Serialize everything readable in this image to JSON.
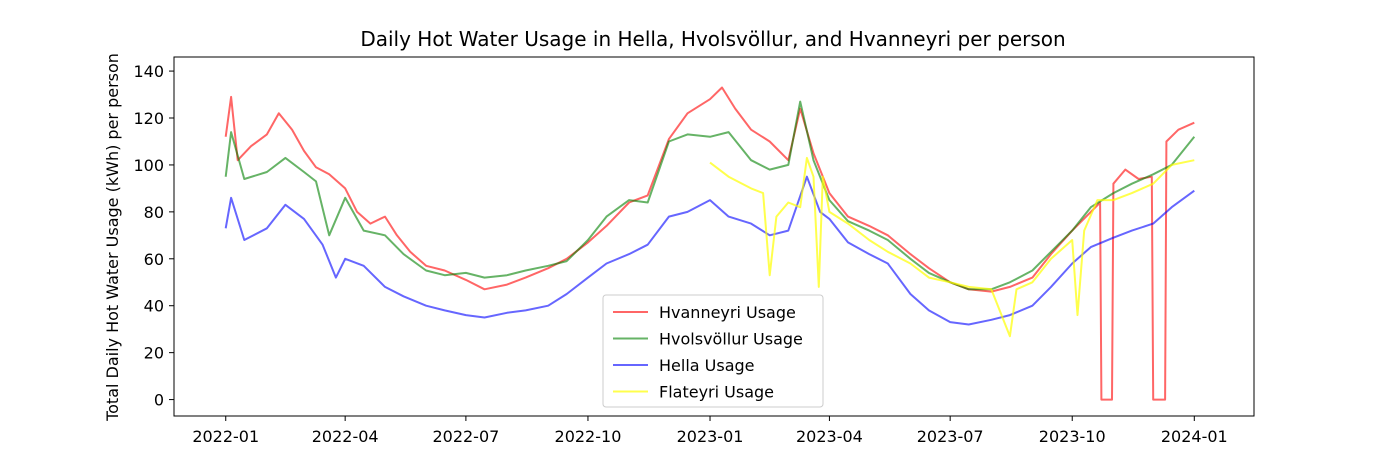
{
  "chart_data": {
    "type": "line",
    "title": "Daily Hot Water Usage in Hella, Hvolsvöllur, and Hvanneyri per person",
    "xlabel": "",
    "ylabel": "Total Daily Hot Water Usage (kWh) per person",
    "xlim": [
      "2021-11-23",
      "2024-02-15"
    ],
    "ylim": [
      -7,
      146
    ],
    "x_ticks": [
      "2022-01",
      "2022-04",
      "2022-07",
      "2022-10",
      "2023-01",
      "2023-04",
      "2023-07",
      "2023-10",
      "2024-01"
    ],
    "y_ticks": [
      0,
      20,
      40,
      60,
      80,
      100,
      120,
      140
    ],
    "grid": false,
    "legend": "lower-center",
    "series": [
      {
        "name": "Hvanneyri Usage",
        "color": "#ff0000",
        "opacity": 0.6,
        "points": [
          [
            "2022-01-01",
            112
          ],
          [
            "2022-01-05",
            129
          ],
          [
            "2022-01-10",
            102
          ],
          [
            "2022-01-20",
            108
          ],
          [
            "2022-02-01",
            113
          ],
          [
            "2022-02-10",
            122
          ],
          [
            "2022-02-20",
            115
          ],
          [
            "2022-03-01",
            106
          ],
          [
            "2022-03-10",
            99
          ],
          [
            "2022-03-20",
            96
          ],
          [
            "2022-04-01",
            90
          ],
          [
            "2022-04-10",
            80
          ],
          [
            "2022-04-20",
            75
          ],
          [
            "2022-05-01",
            78
          ],
          [
            "2022-05-10",
            70
          ],
          [
            "2022-05-20",
            63
          ],
          [
            "2022-06-01",
            57
          ],
          [
            "2022-06-15",
            55
          ],
          [
            "2022-07-01",
            51
          ],
          [
            "2022-07-15",
            47
          ],
          [
            "2022-08-01",
            49
          ],
          [
            "2022-08-15",
            52
          ],
          [
            "2022-09-01",
            56
          ],
          [
            "2022-09-15",
            60
          ],
          [
            "2022-10-01",
            67
          ],
          [
            "2022-10-15",
            74
          ],
          [
            "2022-11-01",
            84
          ],
          [
            "2022-11-15",
            87
          ],
          [
            "2022-12-01",
            111
          ],
          [
            "2022-12-15",
            122
          ],
          [
            "2023-01-01",
            128
          ],
          [
            "2023-01-10",
            133
          ],
          [
            "2023-01-20",
            124
          ],
          [
            "2023-02-01",
            115
          ],
          [
            "2023-02-15",
            110
          ],
          [
            "2023-03-01",
            102
          ],
          [
            "2023-03-10",
            124
          ],
          [
            "2023-03-20",
            105
          ],
          [
            "2023-04-01",
            88
          ],
          [
            "2023-04-15",
            78
          ],
          [
            "2023-05-01",
            74
          ],
          [
            "2023-05-15",
            70
          ],
          [
            "2023-06-01",
            62
          ],
          [
            "2023-06-15",
            56
          ],
          [
            "2023-07-01",
            50
          ],
          [
            "2023-07-15",
            47
          ],
          [
            "2023-08-01",
            46
          ],
          [
            "2023-08-15",
            48
          ],
          [
            "2023-09-01",
            52
          ],
          [
            "2023-09-15",
            62
          ],
          [
            "2023-10-01",
            72
          ],
          [
            "2023-10-15",
            80
          ],
          [
            "2023-10-22",
            84
          ],
          [
            "2023-10-23",
            0
          ],
          [
            "2023-10-31",
            0
          ],
          [
            "2023-11-01",
            92
          ],
          [
            "2023-11-10",
            98
          ],
          [
            "2023-11-20",
            94
          ],
          [
            "2023-11-30",
            95
          ],
          [
            "2023-12-01",
            0
          ],
          [
            "2023-12-10",
            0
          ],
          [
            "2023-12-11",
            110
          ],
          [
            "2023-12-20",
            115
          ],
          [
            "2024-01-01",
            118
          ]
        ]
      },
      {
        "name": "Hvolsvöllur Usage",
        "color": "#008000",
        "opacity": 0.6,
        "points": [
          [
            "2022-01-01",
            95
          ],
          [
            "2022-01-05",
            114
          ],
          [
            "2022-01-15",
            94
          ],
          [
            "2022-02-01",
            97
          ],
          [
            "2022-02-15",
            103
          ],
          [
            "2022-03-01",
            97
          ],
          [
            "2022-03-10",
            93
          ],
          [
            "2022-03-20",
            70
          ],
          [
            "2022-04-01",
            86
          ],
          [
            "2022-04-15",
            72
          ],
          [
            "2022-05-01",
            70
          ],
          [
            "2022-05-15",
            62
          ],
          [
            "2022-06-01",
            55
          ],
          [
            "2022-06-15",
            53
          ],
          [
            "2022-07-01",
            54
          ],
          [
            "2022-07-15",
            52
          ],
          [
            "2022-08-01",
            53
          ],
          [
            "2022-08-15",
            55
          ],
          [
            "2022-09-01",
            57
          ],
          [
            "2022-09-15",
            59
          ],
          [
            "2022-10-01",
            68
          ],
          [
            "2022-10-15",
            78
          ],
          [
            "2022-11-01",
            85
          ],
          [
            "2022-11-15",
            84
          ],
          [
            "2022-12-01",
            110
          ],
          [
            "2022-12-15",
            113
          ],
          [
            "2023-01-01",
            112
          ],
          [
            "2023-01-15",
            114
          ],
          [
            "2023-02-01",
            102
          ],
          [
            "2023-02-15",
            98
          ],
          [
            "2023-03-01",
            100
          ],
          [
            "2023-03-10",
            127
          ],
          [
            "2023-03-20",
            102
          ],
          [
            "2023-04-01",
            85
          ],
          [
            "2023-04-15",
            76
          ],
          [
            "2023-05-01",
            72
          ],
          [
            "2023-05-15",
            68
          ],
          [
            "2023-06-01",
            60
          ],
          [
            "2023-06-15",
            54
          ],
          [
            "2023-07-01",
            50
          ],
          [
            "2023-07-15",
            47
          ],
          [
            "2023-08-01",
            47
          ],
          [
            "2023-08-15",
            50
          ],
          [
            "2023-09-01",
            55
          ],
          [
            "2023-09-15",
            63
          ],
          [
            "2023-10-01",
            72
          ],
          [
            "2023-10-15",
            82
          ],
          [
            "2023-11-01",
            88
          ],
          [
            "2023-11-15",
            92
          ],
          [
            "2023-12-01",
            96
          ],
          [
            "2023-12-15",
            100
          ],
          [
            "2024-01-01",
            112
          ]
        ]
      },
      {
        "name": "Hella Usage",
        "color": "#0000ff",
        "opacity": 0.6,
        "points": [
          [
            "2022-01-01",
            73
          ],
          [
            "2022-01-05",
            86
          ],
          [
            "2022-01-15",
            68
          ],
          [
            "2022-02-01",
            73
          ],
          [
            "2022-02-15",
            83
          ],
          [
            "2022-03-01",
            77
          ],
          [
            "2022-03-15",
            66
          ],
          [
            "2022-03-25",
            52
          ],
          [
            "2022-04-01",
            60
          ],
          [
            "2022-04-15",
            57
          ],
          [
            "2022-05-01",
            48
          ],
          [
            "2022-05-15",
            44
          ],
          [
            "2022-06-01",
            40
          ],
          [
            "2022-06-15",
            38
          ],
          [
            "2022-07-01",
            36
          ],
          [
            "2022-07-15",
            35
          ],
          [
            "2022-08-01",
            37
          ],
          [
            "2022-08-15",
            38
          ],
          [
            "2022-09-01",
            40
          ],
          [
            "2022-09-15",
            45
          ],
          [
            "2022-10-01",
            52
          ],
          [
            "2022-10-15",
            58
          ],
          [
            "2022-11-01",
            62
          ],
          [
            "2022-11-15",
            66
          ],
          [
            "2022-12-01",
            78
          ],
          [
            "2022-12-15",
            80
          ],
          [
            "2023-01-01",
            85
          ],
          [
            "2023-01-15",
            78
          ],
          [
            "2023-02-01",
            75
          ],
          [
            "2023-02-15",
            70
          ],
          [
            "2023-03-01",
            72
          ],
          [
            "2023-03-15",
            95
          ],
          [
            "2023-03-25",
            80
          ],
          [
            "2023-04-01",
            77
          ],
          [
            "2023-04-15",
            67
          ],
          [
            "2023-05-01",
            62
          ],
          [
            "2023-05-15",
            58
          ],
          [
            "2023-06-01",
            45
          ],
          [
            "2023-06-15",
            38
          ],
          [
            "2023-07-01",
            33
          ],
          [
            "2023-07-15",
            32
          ],
          [
            "2023-08-01",
            34
          ],
          [
            "2023-08-15",
            36
          ],
          [
            "2023-09-01",
            40
          ],
          [
            "2023-09-15",
            48
          ],
          [
            "2023-10-01",
            58
          ],
          [
            "2023-10-15",
            65
          ],
          [
            "2023-11-01",
            69
          ],
          [
            "2023-11-15",
            72
          ],
          [
            "2023-12-01",
            75
          ],
          [
            "2023-12-15",
            82
          ],
          [
            "2024-01-01",
            89
          ]
        ]
      },
      {
        "name": "Flateyri Usage",
        "color": "#ffff00",
        "opacity": 0.7,
        "points": [
          [
            "2023-01-01",
            101
          ],
          [
            "2023-01-15",
            95
          ],
          [
            "2023-02-01",
            90
          ],
          [
            "2023-02-10",
            88
          ],
          [
            "2023-02-15",
            53
          ],
          [
            "2023-02-20",
            78
          ],
          [
            "2023-03-01",
            84
          ],
          [
            "2023-03-10",
            82
          ],
          [
            "2023-03-15",
            103
          ],
          [
            "2023-03-20",
            95
          ],
          [
            "2023-03-24",
            48
          ],
          [
            "2023-03-27",
            95
          ],
          [
            "2023-04-01",
            80
          ],
          [
            "2023-04-15",
            75
          ],
          [
            "2023-05-01",
            68
          ],
          [
            "2023-05-15",
            63
          ],
          [
            "2023-06-01",
            58
          ],
          [
            "2023-06-15",
            52
          ],
          [
            "2023-07-01",
            50
          ],
          [
            "2023-07-15",
            48
          ],
          [
            "2023-08-01",
            47
          ],
          [
            "2023-08-15",
            27
          ],
          [
            "2023-08-20",
            47
          ],
          [
            "2023-09-01",
            50
          ],
          [
            "2023-09-15",
            60
          ],
          [
            "2023-10-01",
            68
          ],
          [
            "2023-10-05",
            36
          ],
          [
            "2023-10-10",
            72
          ],
          [
            "2023-10-20",
            85
          ],
          [
            "2023-11-01",
            85
          ],
          [
            "2023-11-15",
            88
          ],
          [
            "2023-12-01",
            92
          ],
          [
            "2023-12-15",
            100
          ],
          [
            "2024-01-01",
            102
          ]
        ]
      }
    ]
  }
}
